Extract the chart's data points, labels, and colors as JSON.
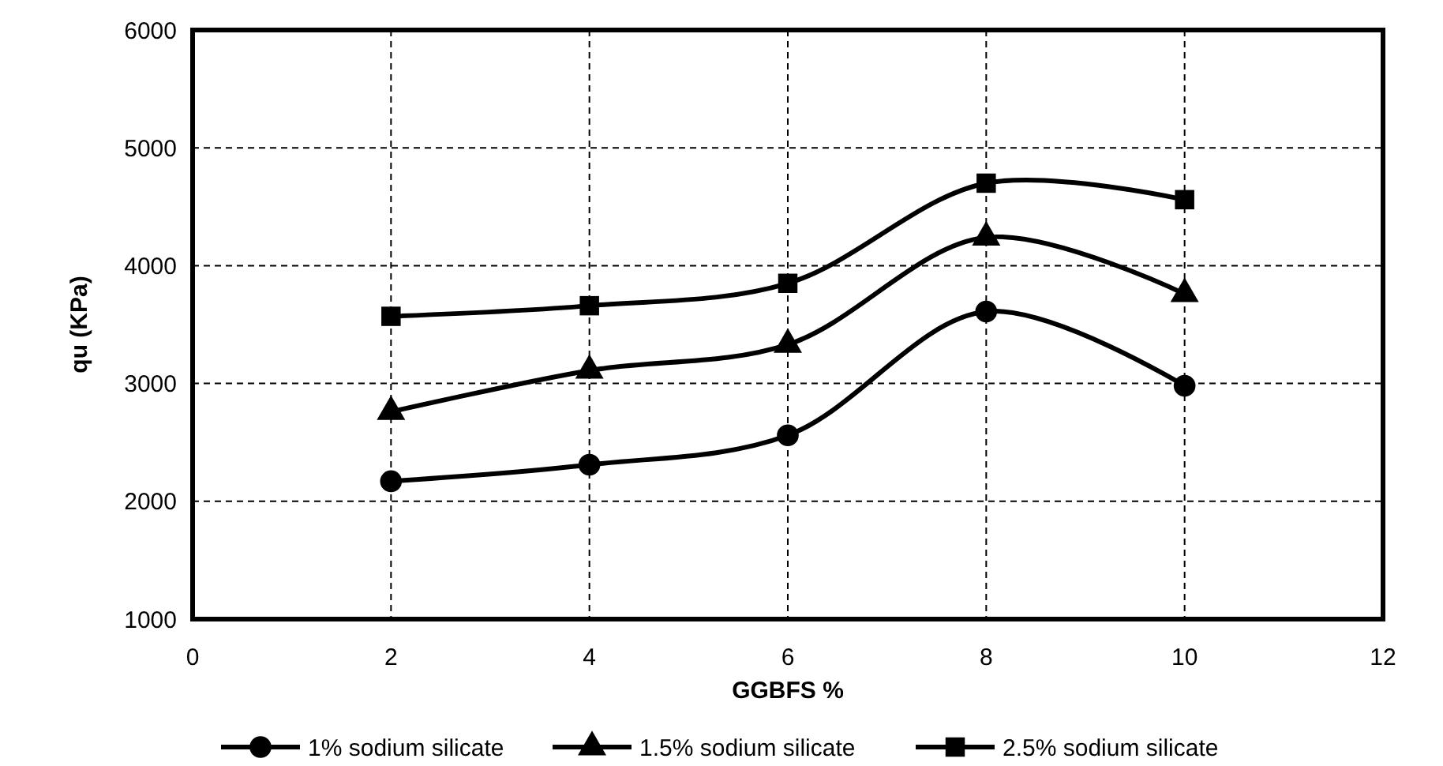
{
  "chart_data": {
    "type": "line",
    "xlabel": "GGBFS %",
    "ylabel": "qu (KPa)",
    "x": [
      2,
      4,
      6,
      8,
      10
    ],
    "xlim": [
      0,
      12
    ],
    "xticks": [
      0,
      2,
      4,
      6,
      8,
      10,
      12
    ],
    "ylim": [
      1000,
      6000
    ],
    "yticks": [
      1000,
      2000,
      3000,
      4000,
      5000,
      6000
    ],
    "grid": true,
    "legend": "bottom",
    "line_style": "solid",
    "series": [
      {
        "name": "1% sodium silicate",
        "color": "#000000",
        "marker": "circle",
        "values": [
          2170,
          2310,
          2560,
          3610,
          2980
        ]
      },
      {
        "name": "1.5% sodium silicate",
        "color": "#000000",
        "marker": "triangle",
        "values": [
          2760,
          3110,
          3330,
          4240,
          3760
        ]
      },
      {
        "name": "2.5% sodium silicate",
        "color": "#000000",
        "marker": "square",
        "values": [
          3570,
          3660,
          3850,
          4700,
          4560
        ]
      }
    ]
  }
}
